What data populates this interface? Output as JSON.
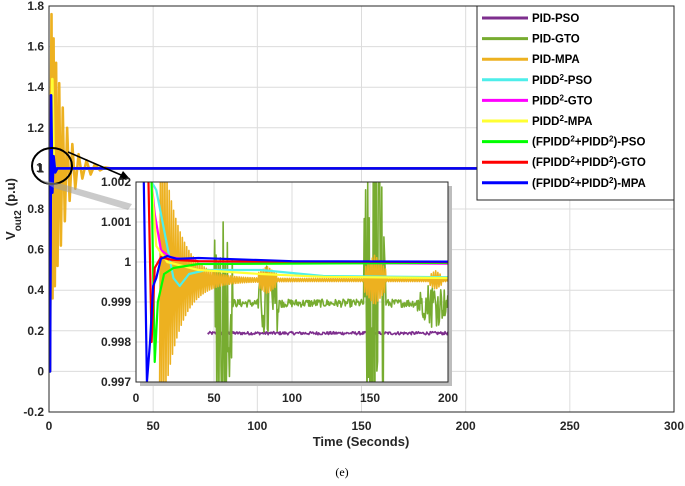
{
  "caption": "(e)",
  "chart_data": [
    {
      "type": "line",
      "xlabel": "Time (Seconds)",
      "ylabel": "V",
      "ylabel_sub": "out2",
      "ylabel_unit": "(p.u)",
      "xlim": [
        0,
        300
      ],
      "ylim": [
        -0.2,
        1.8
      ],
      "xticks": [
        0,
        50,
        100,
        150,
        200,
        250,
        300
      ],
      "yticks": [
        -0.2,
        0,
        0.2,
        0.4,
        0.6,
        0.8,
        1,
        1.2,
        1.4,
        1.6,
        1.8
      ],
      "ytick_labels": [
        "-0.2",
        "0",
        "0.2",
        "0.4",
        "0.6",
        "0.8",
        "1",
        "1.2",
        "1.4",
        "1.6",
        "1.8"
      ],
      "grid": true,
      "legend_position": "top-right",
      "series": [
        {
          "name": "PID-PSO",
          "name_html": "PID-PSO",
          "color": "#7e2f8e",
          "points": [
            [
              0,
              0
            ],
            [
              0.5,
              0
            ],
            [
              1,
              0.9
            ],
            [
              1.6,
              1.22
            ],
            [
              2.3,
              1.06
            ],
            [
              3,
              0.98
            ],
            [
              4,
              1.01
            ],
            [
              6,
              0.999
            ],
            [
              10,
              0.9982
            ],
            [
              300,
              0.9982
            ]
          ]
        },
        {
          "name": "PID-GTO",
          "name_html": "PID-GTO",
          "color": "#77ac30",
          "points": [
            [
              0,
              0
            ],
            [
              0.5,
              0
            ],
            [
              1,
              0.95
            ],
            [
              1.7,
              1.3
            ],
            [
              2.4,
              1.05
            ],
            [
              3.2,
              0.97
            ],
            [
              4.2,
              1.02
            ],
            [
              6,
              0.995
            ],
            [
              10,
              0.999
            ],
            [
              300,
              0.999
            ]
          ]
        },
        {
          "name": "PID-MPA",
          "name_html": "PID-MPA",
          "color": "#edb120",
          "points": [
            [
              0,
              0
            ],
            [
              0.4,
              0
            ],
            [
              0.8,
              1.1
            ],
            [
              1.2,
              1.76
            ],
            [
              1.7,
              0.36
            ],
            [
              2.2,
              1.64
            ],
            [
              2.8,
              0.42
            ],
            [
              3.4,
              1.52
            ],
            [
              4.1,
              0.52
            ],
            [
              4.9,
              1.42
            ],
            [
              5.7,
              0.62
            ],
            [
              6.6,
              1.3
            ],
            [
              7.6,
              0.74
            ],
            [
              8.7,
              1.2
            ],
            [
              9.9,
              0.84
            ],
            [
              11.2,
              1.12
            ],
            [
              12.6,
              0.9
            ],
            [
              14.2,
              1.07
            ],
            [
              16,
              0.95
            ],
            [
              18,
              1.04
            ],
            [
              20,
              0.97
            ],
            [
              22,
              1.02
            ],
            [
              24.5,
              0.99
            ],
            [
              27,
              1.005
            ],
            [
              30,
              0.9996
            ],
            [
              300,
              0.9996
            ]
          ]
        },
        {
          "name": "PIDD2-PSO",
          "name_html": "PIDD<tspan baseline-shift='super' font-size='8'>2</tspan>-PSO",
          "color": "#4deeea",
          "points": [
            [
              0,
              0
            ],
            [
              0.5,
              0
            ],
            [
              1,
              1.0
            ],
            [
              1.8,
              1.06
            ],
            [
              2.6,
              1.01
            ],
            [
              4,
              1.0
            ],
            [
              300,
              1.0
            ]
          ]
        },
        {
          "name": "PIDD2-GTO",
          "name_html": "PIDD<tspan baseline-shift='super' font-size='8'>2</tspan>-GTO",
          "color": "#ff00ff",
          "points": [
            [
              0,
              0
            ],
            [
              0.5,
              0
            ],
            [
              1,
              1.0
            ],
            [
              1.8,
              1.04
            ],
            [
              2.6,
              1.0
            ],
            [
              300,
              1.0
            ]
          ]
        },
        {
          "name": "PIDD2-MPA",
          "name_html": "PIDD<tspan baseline-shift='super' font-size='8'>2</tspan>-MPA",
          "color": "#ffff33",
          "points": [
            [
              0,
              0
            ],
            [
              0.5,
              0
            ],
            [
              1,
              1.1
            ],
            [
              1.6,
              1.44
            ],
            [
              2.3,
              1.04
            ],
            [
              3,
              0.98
            ],
            [
              4,
              1.0
            ],
            [
              300,
              1.0
            ]
          ]
        },
        {
          "name": "(FPIDD2+PIDD2)-PSO",
          "name_html": "(FPIDD<tspan baseline-shift='super' font-size='8'>2</tspan>+PIDD<tspan baseline-shift='super' font-size='8'>2</tspan>)-PSO",
          "color": "#00ff00",
          "points": [
            [
              0,
              0
            ],
            [
              0.5,
              0
            ],
            [
              1,
              0.99
            ],
            [
              1.8,
              1.02
            ],
            [
              2.6,
              1.0
            ],
            [
              300,
              1.0
            ]
          ]
        },
        {
          "name": "(FPIDD2+PIDD2)-GTO",
          "name_html": "(FPIDD<tspan baseline-shift='super' font-size='8'>2</tspan>+PIDD<tspan baseline-shift='super' font-size='8'>2</tspan>)-GTO",
          "color": "#ff0000",
          "points": [
            [
              0,
              0
            ],
            [
              0.5,
              0
            ],
            [
              1,
              1.0
            ],
            [
              1.8,
              1.01
            ],
            [
              2.6,
              1.0
            ],
            [
              300,
              1.0
            ]
          ]
        },
        {
          "name": "(FPIDD2+PIDD2)-MPA",
          "name_html": "(FPIDD<tspan baseline-shift='super' font-size='8'>2</tspan>+PIDD<tspan baseline-shift='super' font-size='8'>2</tspan>)-MPA",
          "color": "#0000ff",
          "points": [
            [
              0,
              0
            ],
            [
              0.5,
              0
            ],
            [
              1,
              1.36
            ],
            [
              1.6,
              0.88
            ],
            [
              2.2,
              1.06
            ],
            [
              3,
              0.98
            ],
            [
              4,
              1.0
            ],
            [
              300,
              1.0
            ]
          ]
        }
      ]
    },
    {
      "type": "line",
      "role": "inset-zoom",
      "xlim": [
        0,
        200
      ],
      "ylim": [
        0.997,
        1.002
      ],
      "xticks": [
        0,
        50,
        100,
        150,
        200
      ],
      "yticks": [
        0.997,
        0.998,
        0.999,
        1,
        1.001,
        1.002
      ],
      "ytick_labels": [
        "0.997",
        "0.998",
        "0.999",
        "1",
        "1.001",
        "1.002"
      ],
      "grid": true,
      "annotation": "1",
      "series": [
        {
          "name": "PID-PSO",
          "color": "#7e2f8e",
          "style": "noisy",
          "mean": 0.99822,
          "amp": 4e-05,
          "start": 46,
          "end": 200
        },
        {
          "name": "PID-GTO",
          "color": "#77ac30",
          "style": "noisy",
          "mean": 0.99897,
          "amp": 0.0001,
          "start": 50,
          "end": 200,
          "bursts": [
            [
              46,
              62,
              0.0035
            ],
            [
              78,
              92,
              0.0012
            ],
            [
              146,
              160,
              0.006
            ],
            [
              180,
              200,
              0.0006
            ]
          ]
        },
        {
          "name": "PID-MPA",
          "color": "#edb120",
          "style": "decaying",
          "final": 0.99955,
          "amp0": 0.004,
          "tau": 11,
          "period": 1.4,
          "start": 15,
          "end": 200,
          "bursts": [
            [
              78,
              90,
              0.0003
            ],
            [
              146,
              160,
              0.0006
            ],
            [
              188,
              196,
              0.0002
            ]
          ]
        },
        {
          "name": "PIDD2-PSO",
          "color": "#4deeea",
          "style": "smooth",
          "points": [
            [
              10,
              1.002
            ],
            [
              13,
              1.0018
            ],
            [
              18,
              1.0008
            ],
            [
              24,
              0.9996
            ],
            [
              28,
              0.9994
            ],
            [
              34,
              0.9997
            ],
            [
              45,
              0.9998
            ],
            [
              80,
              0.9998
            ],
            [
              120,
              0.99965
            ],
            [
              200,
              0.99962
            ]
          ]
        },
        {
          "name": "PIDD2-GTO",
          "color": "#ff00ff",
          "style": "smooth",
          "points": [
            [
              10,
              1.002
            ],
            [
              12,
              1.0012
            ],
            [
              16,
              1.0003
            ],
            [
              22,
              1.00012
            ],
            [
              40,
              1.00002
            ],
            [
              100,
              0.99998
            ],
            [
              200,
              0.99996
            ]
          ]
        },
        {
          "name": "PIDD2-MPA",
          "color": "#ffff33",
          "style": "smooth",
          "points": [
            [
              10,
              1.002
            ],
            [
              13,
              1.0004
            ],
            [
              20,
              1.0
            ],
            [
              40,
              0.9998
            ],
            [
              80,
              0.9997
            ],
            [
              120,
              0.99963
            ],
            [
              200,
              0.9996
            ]
          ]
        },
        {
          "name": "(FPIDD2+PIDD2)-PSO",
          "color": "#00ff00",
          "style": "smooth",
          "points": [
            [
              10,
              1.002
            ],
            [
              12,
              0.9975
            ],
            [
              14,
              0.999
            ],
            [
              18,
              0.9997
            ],
            [
              24,
              0.99985
            ],
            [
              40,
              0.99995
            ],
            [
              200,
              0.99998
            ]
          ]
        },
        {
          "name": "(FPIDD2+PIDD2)-GTO",
          "color": "#ff0000",
          "style": "smooth",
          "points": [
            [
              8,
              1.002
            ],
            [
              10,
              0.998
            ],
            [
              12,
              0.99985
            ],
            [
              16,
              1.00012
            ],
            [
              22,
              1.00006
            ],
            [
              40,
              1.00002
            ],
            [
              200,
              1.0
            ]
          ]
        },
        {
          "name": "(FPIDD2+PIDD2)-MPA",
          "color": "#0000ff",
          "style": "smooth",
          "points": [
            [
              5,
              1.002
            ],
            [
              7,
              0.997
            ],
            [
              9,
              0.998
            ],
            [
              11,
              0.9994
            ],
            [
              13,
              0.9996
            ],
            [
              16,
              1.00008
            ],
            [
              20,
              1.00015
            ],
            [
              26,
              1.00008
            ],
            [
              40,
              1.0001
            ],
            [
              100,
              1.00002
            ],
            [
              200,
              1.00001
            ]
          ]
        }
      ]
    }
  ]
}
